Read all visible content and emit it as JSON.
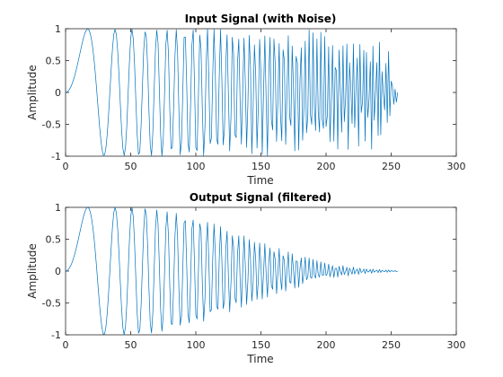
{
  "chart_data": [
    {
      "type": "line",
      "title": "Input Signal (with Noise)",
      "xlabel": "Time",
      "ylabel": "Amplitude",
      "xlim": [
        0,
        300
      ],
      "ylim": [
        -1,
        1
      ],
      "xticks": [
        "0",
        "50",
        "100",
        "150",
        "200",
        "250",
        "300"
      ],
      "yticks": [
        "1",
        "0.5",
        "0",
        "-0.5",
        "-1"
      ],
      "grid": false,
      "color": "#0072bd",
      "series": [
        {
          "description": "Linear chirp sampled at integer times 0..255: starts at 0, first peak near x=17, frequency increases steadily; amplitude stays near 1 with added random noise, dropping sharply to about 0 at x=255.",
          "x_start": 0,
          "x_end": 255,
          "y_start": 0,
          "y_end": 0,
          "first_peak": {
            "x": 17,
            "y": 1
          },
          "first_trough": {
            "x": 31,
            "y": -1
          },
          "envelope": [
            {
              "x": 0,
              "amp": 1.0
            },
            {
              "x": 100,
              "amp": 0.98
            },
            {
              "x": 200,
              "amp": 0.85
            },
            {
              "x": 240,
              "amp": 0.8
            },
            {
              "x": 250,
              "amp": 0.5
            },
            {
              "x": 255,
              "amp": 0.05
            }
          ]
        }
      ]
    },
    {
      "type": "line",
      "title": "Output Signal (filtered)",
      "xlabel": "Time",
      "ylabel": "Amplitude",
      "xlim": [
        0,
        300
      ],
      "ylim": [
        -1,
        1
      ],
      "xticks": [
        "0",
        "50",
        "100",
        "150",
        "200",
        "250",
        "300"
      ],
      "yticks": [
        "1",
        "0.5",
        "0",
        "-0.5",
        "-1"
      ],
      "grid": false,
      "color": "#0072bd",
      "series": [
        {
          "description": "Same chirp after low-pass filtering: smooth oscillation with amplitude decaying from 1 to about 0 as frequency rises; x from 0 to 255.",
          "x_start": 0,
          "x_end": 255,
          "y_start": 0,
          "y_end": 0,
          "first_peak": {
            "x": 17,
            "y": 1
          },
          "first_trough": {
            "x": 31,
            "y": -1
          },
          "envelope": [
            {
              "x": 0,
              "amp": 1.0
            },
            {
              "x": 60,
              "amp": 1.0
            },
            {
              "x": 100,
              "amp": 0.85
            },
            {
              "x": 150,
              "amp": 0.45
            },
            {
              "x": 200,
              "amp": 0.12
            },
            {
              "x": 230,
              "amp": 0.04
            },
            {
              "x": 255,
              "amp": 0.01
            }
          ]
        }
      ]
    }
  ]
}
